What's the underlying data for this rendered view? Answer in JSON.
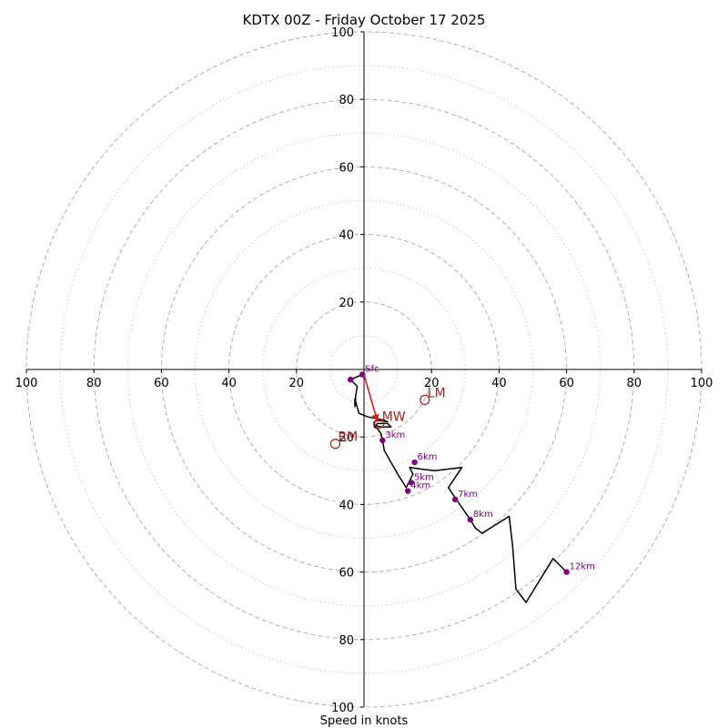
{
  "chart_data": {
    "type": "hodograph",
    "title": "KDTX 00Z - Friday October 17 2025",
    "xlabel": "Speed in knots",
    "range": [
      -100,
      100
    ],
    "major_rings": [
      20,
      40,
      60,
      80,
      100
    ],
    "minor_rings": [
      10,
      30,
      50,
      70,
      90
    ],
    "tick_labels": {
      "x": [
        "100",
        "80",
        "60",
        "40",
        "20",
        "20",
        "40",
        "60",
        "80",
        "100"
      ],
      "y": [
        "100",
        "80",
        "60",
        "40",
        "20",
        "20",
        "40",
        "60",
        "80",
        "100"
      ]
    },
    "colors": {
      "trace": "#000000",
      "height_marker": "#800080",
      "shear_vector": "#e31a1c",
      "storm_motion": "#b22222",
      "grid": "#b0b0b0"
    },
    "trace": [
      [
        -0.5,
        -1.5
      ],
      [
        -4,
        -3
      ],
      [
        -2,
        -5
      ],
      [
        -2.5,
        -8
      ],
      [
        -2.5,
        -8.5
      ],
      [
        -2.5,
        -9
      ],
      [
        -2.7,
        -11
      ],
      [
        -2.7,
        -8.7
      ],
      [
        -1.5,
        -13
      ],
      [
        1,
        -14
      ],
      [
        6,
        -15
      ],
      [
        7,
        -15.5
      ],
      [
        4,
        -15
      ],
      [
        3,
        -15.5
      ],
      [
        3,
        -16.5
      ],
      [
        5,
        -17
      ],
      [
        8,
        -17
      ],
      [
        7,
        -16
      ],
      [
        4,
        -16
      ],
      [
        3,
        -17
      ],
      [
        4,
        -17.5
      ],
      [
        5,
        -19
      ],
      [
        5.5,
        -21
      ],
      [
        6,
        -24
      ],
      [
        10,
        -31
      ],
      [
        12.5,
        -35
      ],
      [
        13.5,
        -33
      ],
      [
        14.5,
        -31
      ],
      [
        13.5,
        -29
      ],
      [
        17,
        -29.5
      ],
      [
        21,
        -30
      ],
      [
        29,
        -29
      ],
      [
        25,
        -35
      ],
      [
        27,
        -38
      ],
      [
        31.5,
        -44.5
      ],
      [
        33,
        -47
      ],
      [
        35,
        -48.5
      ],
      [
        43,
        -43.5
      ],
      [
        44,
        -52
      ],
      [
        45,
        -65
      ],
      [
        48,
        -69
      ],
      [
        56,
        -56
      ],
      [
        60,
        -60
      ]
    ],
    "height_markers": [
      {
        "label": "Sfc",
        "u": -0.5,
        "v": -1.5
      },
      {
        "label": "",
        "u": -4,
        "v": -3
      },
      {
        "label": "3km",
        "u": 5.5,
        "v": -21
      },
      {
        "label": "4km",
        "u": 13,
        "v": -36
      },
      {
        "label": "5km",
        "u": 14,
        "v": -33.5
      },
      {
        "label": "6km",
        "u": 15,
        "v": -27.5
      },
      {
        "label": "7km",
        "u": 27,
        "v": -38.5
      },
      {
        "label": "8km",
        "u": 31.5,
        "v": -44.5
      },
      {
        "label": "12km",
        "u": 60,
        "v": -60
      }
    ],
    "shear_vector": {
      "from": [
        0,
        -1.5
      ],
      "to": [
        4,
        -15.5
      ]
    },
    "storm_motion": [
      {
        "label": "LM",
        "u": 18,
        "v": -9
      },
      {
        "label": "RM",
        "u": -8.5,
        "v": -22
      },
      {
        "label": "MW",
        "u": 4.5,
        "v": -16
      }
    ]
  }
}
